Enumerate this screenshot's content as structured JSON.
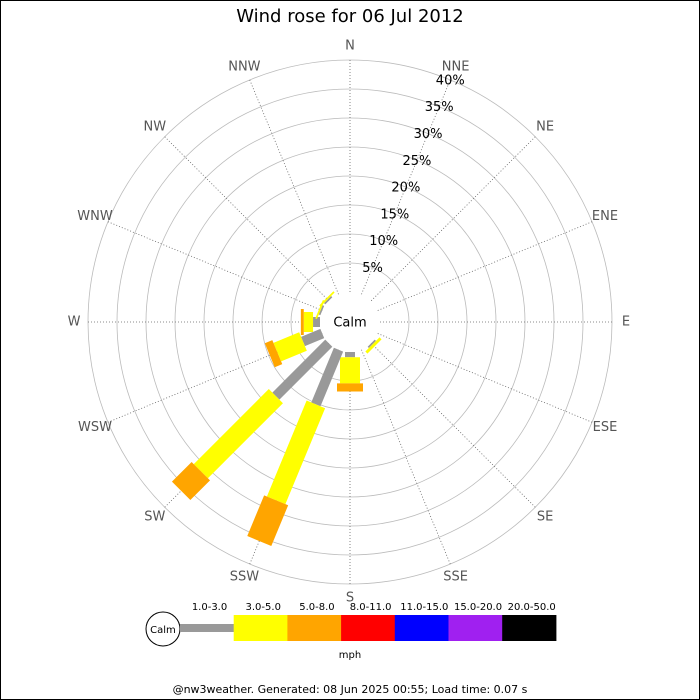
{
  "chart_data": {
    "type": "windrose",
    "title": "Wind rose for 06 Jul 2012",
    "directions": [
      "N",
      "NNE",
      "NE",
      "ENE",
      "E",
      "ESE",
      "SE",
      "SSE",
      "S",
      "SSW",
      "SW",
      "WSW",
      "W",
      "WNW",
      "NW",
      "NNW"
    ],
    "center_label": "Calm",
    "unit_label": "mph",
    "rlim": [
      0,
      40
    ],
    "rticks": [
      {
        "value": 5,
        "label": "5%"
      },
      {
        "value": 10,
        "label": "10%"
      },
      {
        "value": 15,
        "label": "15%"
      },
      {
        "value": 20,
        "label": "20%"
      },
      {
        "value": 25,
        "label": "25%"
      },
      {
        "value": 30,
        "label": "30%"
      },
      {
        "value": 35,
        "label": "35%"
      },
      {
        "value": 40,
        "label": "40%"
      }
    ],
    "series": [
      {
        "name": "1.0-3.0",
        "color": "#999999",
        "values": [
          0,
          0,
          0,
          0,
          0,
          0,
          0.3,
          0,
          0.9,
          10.2,
          12.9,
          3.6,
          1.2,
          0.3,
          0.3,
          0
        ]
      },
      {
        "name": "3.0-5.0",
        "color": "#ffff00",
        "values": [
          0,
          0,
          0,
          0,
          0,
          0,
          0.5,
          0,
          4.5,
          17.9,
          18.3,
          4.8,
          1.6,
          0.3,
          0.3,
          0
        ]
      },
      {
        "name": "5.0-8.0",
        "color": "#ffa500",
        "values": [
          0,
          0,
          0,
          0,
          0,
          0,
          0,
          0,
          1.4,
          7.6,
          4.8,
          1.4,
          0.5,
          0,
          0,
          0
        ]
      },
      {
        "name": "8.0-11.0",
        "color": "#ff0000",
        "values": [
          0,
          0,
          0,
          0,
          0,
          0,
          0,
          0,
          0,
          0,
          0,
          0,
          0,
          0,
          0,
          0
        ]
      },
      {
        "name": "11.0-15.0",
        "color": "#0000ff",
        "values": [
          0,
          0,
          0,
          0,
          0,
          0,
          0,
          0,
          0,
          0,
          0,
          0,
          0,
          0,
          0,
          0
        ]
      },
      {
        "name": "15.0-20.0",
        "color": "#a020f0",
        "values": [
          0,
          0,
          0,
          0,
          0,
          0,
          0,
          0,
          0,
          0,
          0,
          0,
          0,
          0,
          0,
          0
        ]
      },
      {
        "name": "20.0-50.0",
        "color": "#000000",
        "values": [
          0,
          0,
          0,
          0,
          0,
          0,
          0,
          0,
          0,
          0,
          0,
          0,
          0,
          0,
          0,
          0
        ]
      }
    ],
    "footer": "@nw3weather. Generated: 08 Jun 2025 00:55; Load time: 0.07 s"
  }
}
